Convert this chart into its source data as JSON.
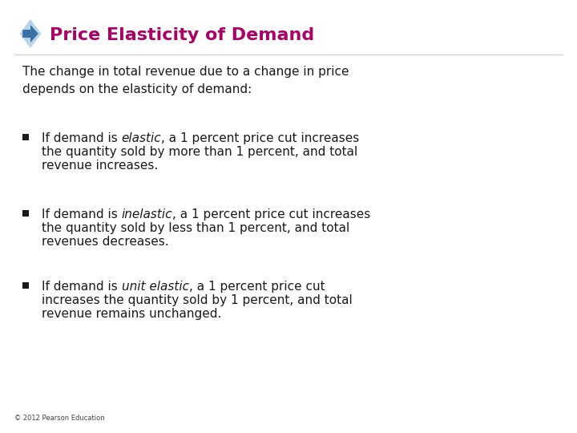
{
  "title": "Price Elasticity of Demand",
  "title_color": "#AA0066",
  "title_fontsize": 16,
  "bg_color": "#FFFFFF",
  "intro_text": "The change in total revenue due to a change in price\ndepends on the elasticity of demand:",
  "bullet_items": [
    {
      "line1_pre": "If demand is ",
      "line1_italic": "elastic",
      "line1_post": ", a 1 percent price cut increases",
      "line2": "the quantity sold by more than 1 percent, and total",
      "line3": "revenue increases."
    },
    {
      "line1_pre": "If demand is ",
      "line1_italic": "inelastic",
      "line1_post": ", a 1 percent price cut increases",
      "line2": "the quantity sold by less than 1 percent, and total",
      "line3": "revenues decreases."
    },
    {
      "line1_pre": "If demand is ",
      "line1_italic": "unit elastic",
      "line1_post": ", a 1 percent price cut",
      "line2": "increases the quantity sold by 1 percent, and total",
      "line3": "revenue remains unchanged."
    }
  ],
  "footer_text": "© 2012 Pearson Education",
  "footer_fontsize": 6,
  "body_fontsize": 11,
  "intro_fontsize": 11,
  "outer_diamond_color": "#b8d4e8",
  "inner_arrow_color": "#3a6fa8"
}
